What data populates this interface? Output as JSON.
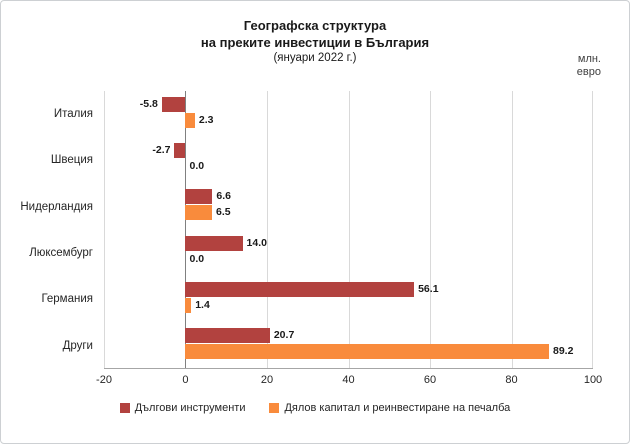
{
  "chart_data": {
    "type": "bar",
    "orientation": "horizontal",
    "title_line1": "Географска структура",
    "title_line2": "на преките инвестиции в България",
    "subtitle": "(януари 2022 г.)",
    "units_label": "млн.\nевро",
    "categories": [
      "Италия",
      "Швеция",
      "Нидерландия",
      "Люксембург",
      "Германия",
      "Други"
    ],
    "series": [
      {
        "name": "Дългови инструменти",
        "color": "#b2423f",
        "values": [
          -5.8,
          -2.7,
          6.6,
          14.0,
          56.1,
          20.7
        ]
      },
      {
        "name": "Дялов капитал и реинвестиране на печалба",
        "color": "#f98b3c",
        "values": [
          2.3,
          0.0,
          6.5,
          0.0,
          1.4,
          89.2
        ]
      }
    ],
    "xlim": [
      -20,
      100
    ],
    "xticks": [
      -20,
      0,
      20,
      40,
      60,
      80,
      100
    ],
    "grid": "vertical",
    "legend_position": "bottom",
    "colors": {
      "series_debt": "#b2423f",
      "series_equity": "#f98b3c",
      "gridline": "#d9d9d9",
      "zero_line": "#808080"
    }
  }
}
